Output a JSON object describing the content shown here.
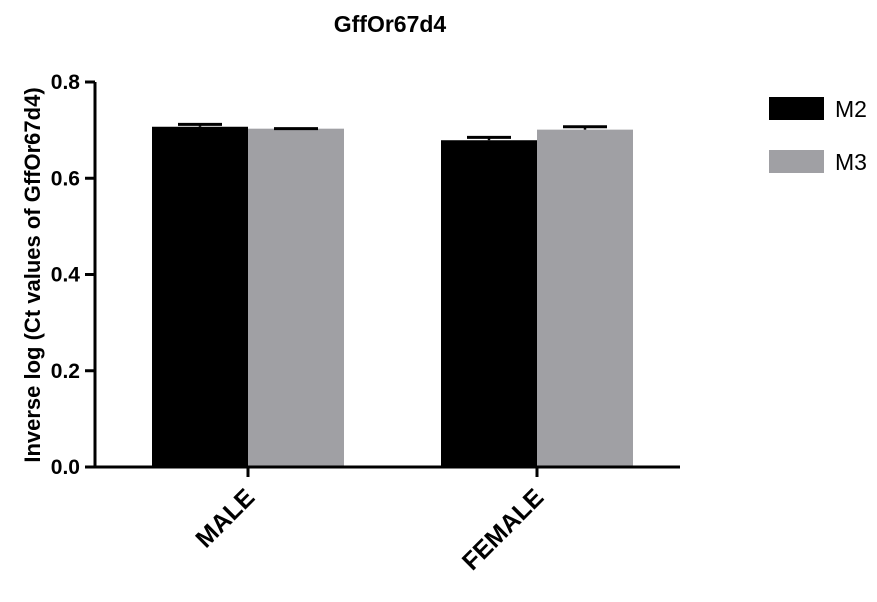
{
  "chart_data": {
    "type": "bar",
    "title": "GffOr67d4",
    "xlabel": "",
    "ylabel": "Inverse log (Ct values of GffOr67d4)",
    "ylim": [
      0,
      0.8
    ],
    "yticks": [
      "0.0",
      "0.2",
      "0.4",
      "0.6",
      "0.8"
    ],
    "categories": [
      "MALE",
      "FEMALE"
    ],
    "series": [
      {
        "name": "M2",
        "values": [
          0.707,
          0.679
        ],
        "error": [
          0.005,
          0.006
        ],
        "color": "#000000"
      },
      {
        "name": "M3",
        "values": [
          0.703,
          0.701
        ],
        "error": [
          0.0,
          0.006
        ],
        "color": "#a0a0a4"
      }
    ],
    "legend_position": "right",
    "grid": false
  }
}
